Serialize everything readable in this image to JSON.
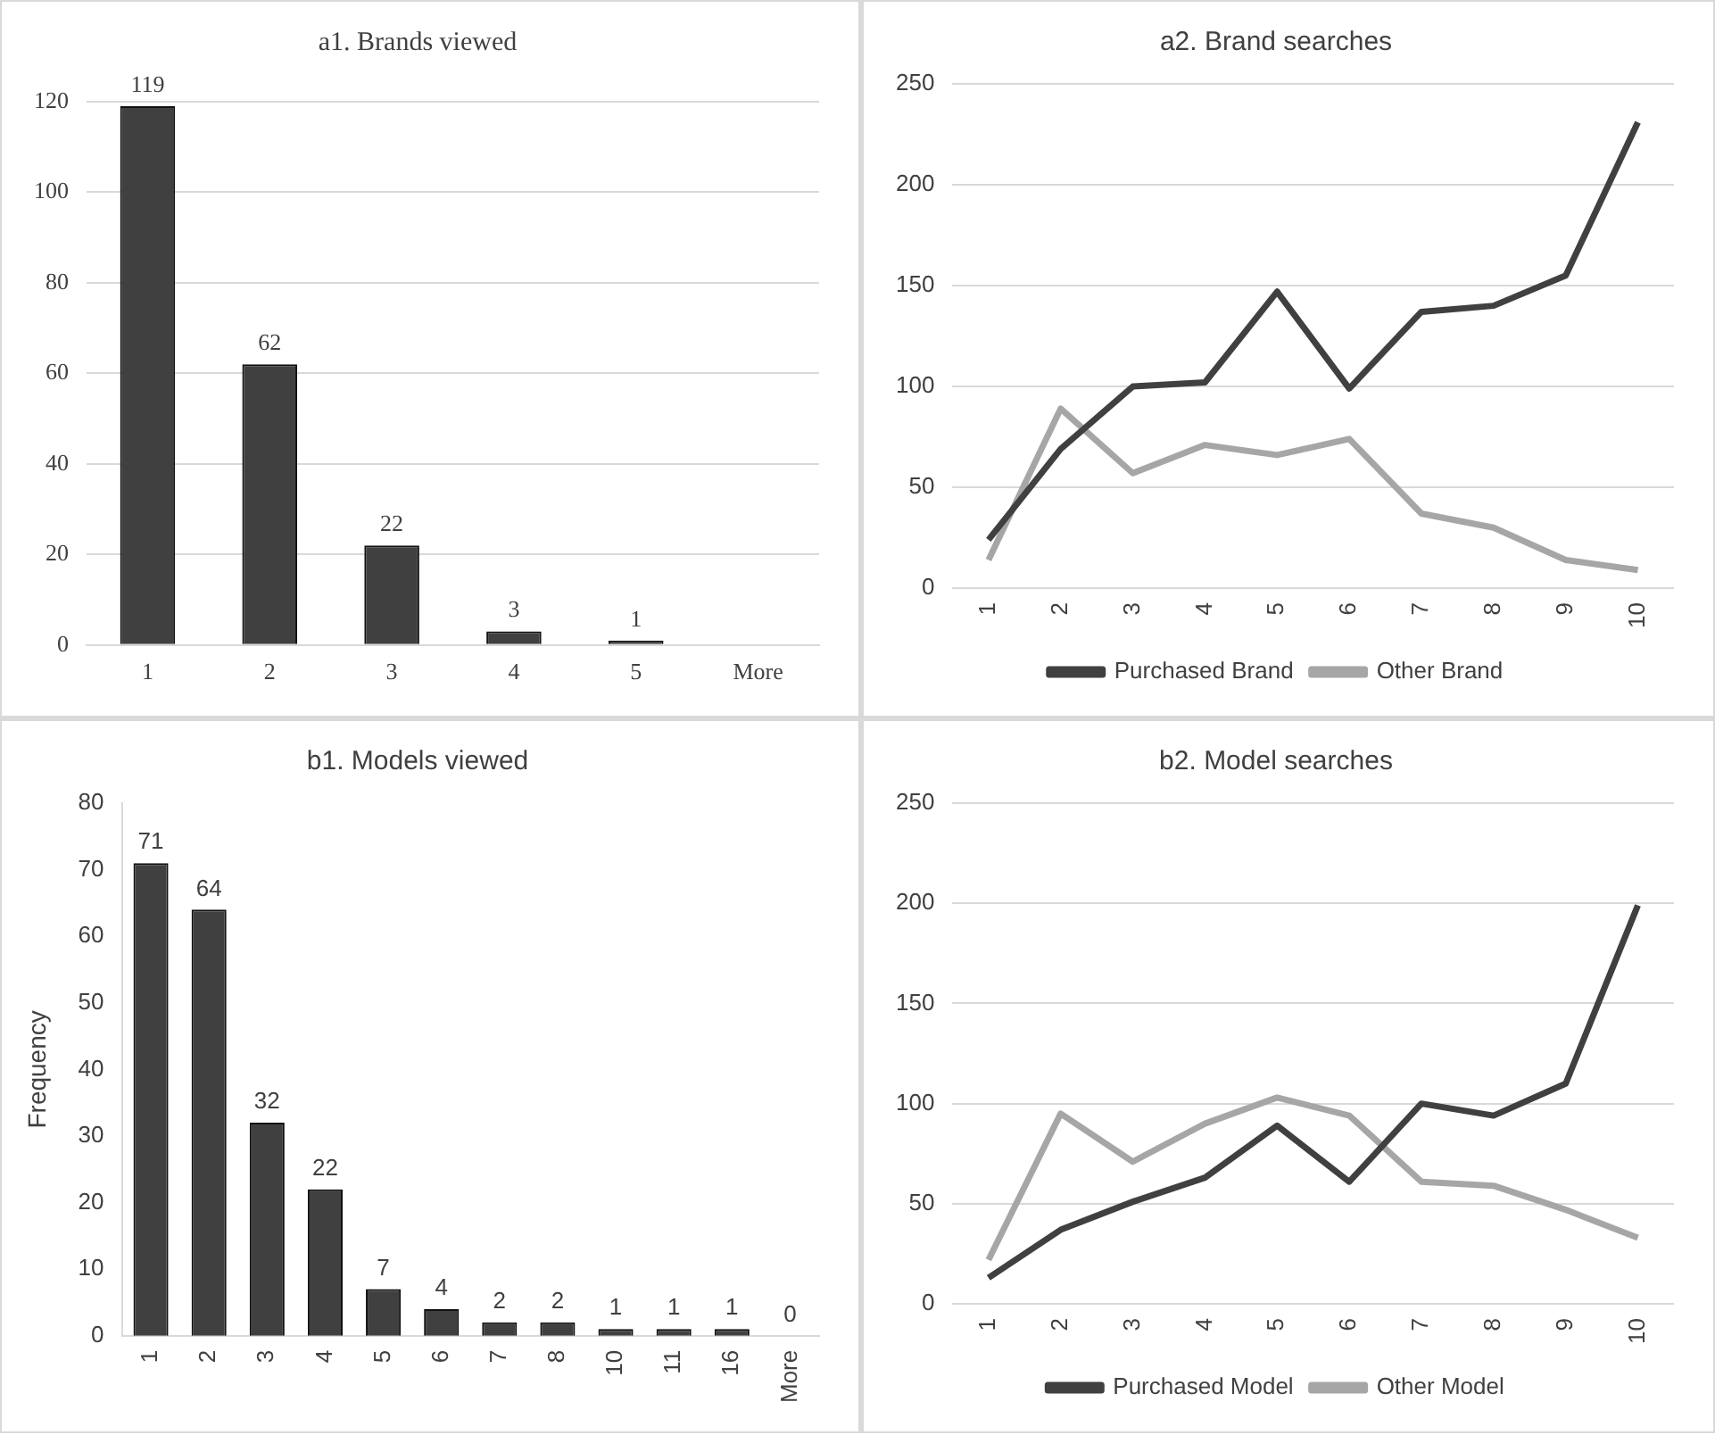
{
  "chart_data": [
    {
      "type": "bar",
      "title": "a1. Brands viewed",
      "categories": [
        "1",
        "2",
        "3",
        "4",
        "5",
        "More"
      ],
      "values": [
        119,
        62,
        22,
        3,
        1,
        0
      ],
      "color": "#404040",
      "value_labels": [
        "119",
        "62",
        "22",
        "3",
        "1",
        null
      ],
      "ylim": [
        0,
        120
      ],
      "yticks": [
        0,
        20,
        40,
        60,
        80,
        100,
        120
      ],
      "grid": "y"
    },
    {
      "type": "line",
      "title": "a2. Brand searches",
      "categories": [
        "1",
        "2",
        "3",
        "4",
        "5",
        "6",
        "7",
        "8",
        "9",
        "10"
      ],
      "series": [
        {
          "name": "Purchased Brand",
          "color": "#404040",
          "values": [
            24,
            69,
            100,
            102,
            147,
            99,
            137,
            140,
            155,
            231
          ]
        },
        {
          "name": "Other Brand",
          "color": "#a6a6a6",
          "values": [
            14,
            89,
            57,
            71,
            66,
            74,
            37,
            30,
            14,
            9
          ]
        }
      ],
      "ylim": [
        0,
        250
      ],
      "yticks": [
        0,
        50,
        100,
        150,
        200,
        250
      ],
      "grid": "y",
      "legend": "bottom",
      "marker": "none"
    },
    {
      "type": "bar",
      "title": "b1. Models viewed",
      "ylabel": "Frequency",
      "categories": [
        "1",
        "2",
        "3",
        "4",
        "5",
        "6",
        "7",
        "8",
        "10",
        "11",
        "16",
        "More"
      ],
      "values": [
        71,
        64,
        32,
        22,
        7,
        4,
        2,
        2,
        1,
        1,
        1,
        0
      ],
      "color": "#404040",
      "data_labels": true,
      "ylim": [
        0,
        80
      ],
      "yticks": [
        0,
        10,
        20,
        30,
        40,
        50,
        60,
        70,
        80
      ]
    },
    {
      "type": "line",
      "title": "b2. Model searches",
      "categories": [
        "1",
        "2",
        "3",
        "4",
        "5",
        "6",
        "7",
        "8",
        "9",
        "10"
      ],
      "series": [
        {
          "name": "Purchased Model",
          "color": "#404040",
          "values": [
            13,
            37,
            51,
            63,
            89,
            61,
            100,
            94,
            110,
            199
          ]
        },
        {
          "name": "Other Model",
          "color": "#a6a6a6",
          "values": [
            22,
            95,
            71,
            90,
            103,
            94,
            61,
            59,
            47,
            33
          ]
        }
      ],
      "ylim": [
        0,
        250
      ],
      "yticks": [
        0,
        50,
        100,
        150,
        200,
        250
      ],
      "grid": "y",
      "legend": "bottom",
      "marker": "none"
    }
  ]
}
